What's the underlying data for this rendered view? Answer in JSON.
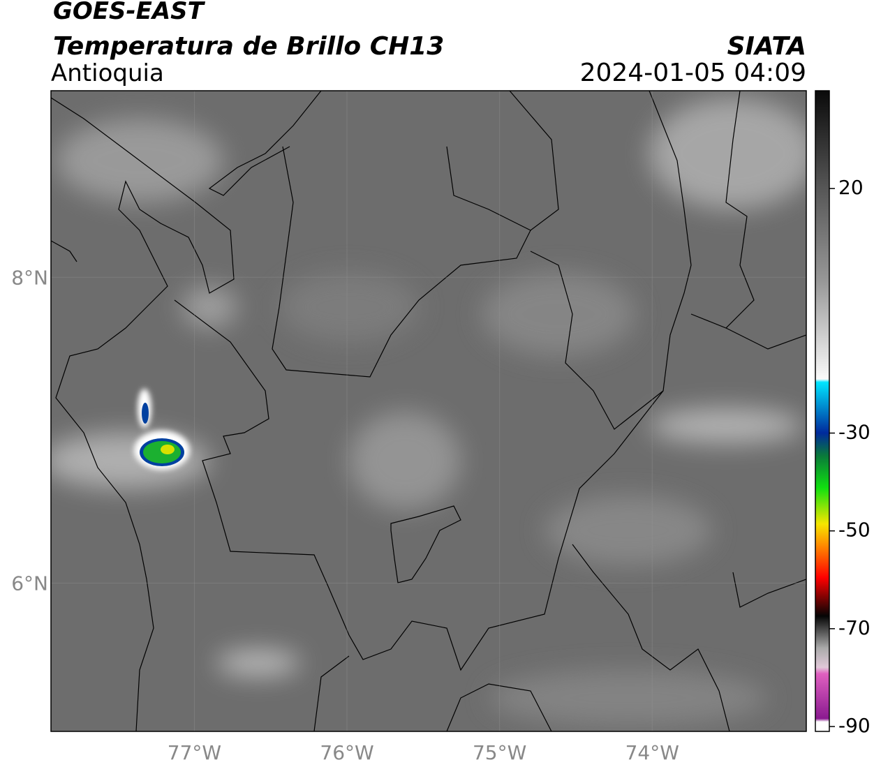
{
  "chart_data": {
    "type": "map",
    "title": "GOES-EAST",
    "subtitle": "Temperatura de Brillo CH13",
    "region": "Antioquia",
    "source": "SIATA",
    "datetime": "2024-01-05 04:09",
    "xlim": [
      -77.94,
      -72.99
    ],
    "ylim": [
      5.03,
      9.22
    ],
    "xticks": [
      {
        "value": -77,
        "label": "77°W"
      },
      {
        "value": -76,
        "label": "76°W"
      },
      {
        "value": -75,
        "label": "75°W"
      },
      {
        "value": -74,
        "label": "74°W"
      }
    ],
    "yticks": [
      {
        "value": 6,
        "label": "6°N"
      },
      {
        "value": 8,
        "label": "8°N"
      }
    ],
    "grid": true,
    "colorbar": {
      "lim": [
        -91,
        40
      ],
      "ticks": [
        20,
        -30,
        -50,
        -70,
        -90
      ]
    }
  }
}
